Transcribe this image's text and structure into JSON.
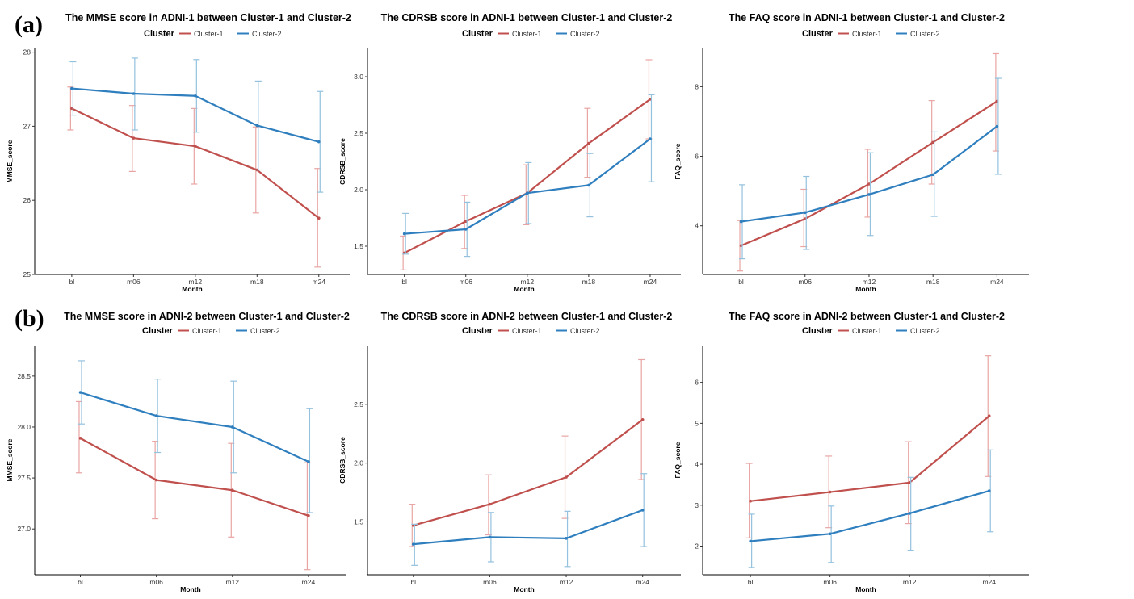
{
  "row_labels": [
    "(a)",
    "(b)"
  ],
  "colors": {
    "Cluster-1": "#c0504d",
    "Cluster-2": "#2f7fbf",
    "err_Cluster-1": "#e8a5a3",
    "err_Cluster-2": "#93c1de"
  },
  "chart_data": [
    {
      "type": "line",
      "title": "The MMSE score in ADNI-1 between Cluster-1 and Cluster-2",
      "legend_title": "Cluster",
      "legend": [
        "Cluster-1",
        "Cluster-2"
      ],
      "xlabel": "Month",
      "ylabel": "MMSE_score",
      "categories": [
        "bl",
        "m06",
        "m12",
        "m18",
        "m24"
      ],
      "yticks": [
        25,
        26,
        27,
        28
      ],
      "ylim": [
        25,
        28.05
      ],
      "series": [
        {
          "name": "Cluster-1",
          "values": [
            27.24,
            26.84,
            26.73,
            26.41,
            25.76
          ],
          "lower": [
            26.95,
            26.39,
            26.22,
            25.83,
            25.1
          ],
          "upper": [
            27.53,
            27.28,
            27.24,
            26.99,
            26.43
          ]
        },
        {
          "name": "Cluster-2",
          "values": [
            27.51,
            27.44,
            27.41,
            27.01,
            26.79
          ],
          "lower": [
            27.15,
            26.95,
            26.92,
            26.41,
            26.11
          ],
          "upper": [
            27.87,
            27.92,
            27.9,
            27.61,
            27.47
          ]
        }
      ]
    },
    {
      "type": "line",
      "title": "The CDRSB score in ADNI-1 between Cluster-1 and Cluster-2",
      "legend_title": "Cluster",
      "legend": [
        "Cluster-1",
        "Cluster-2"
      ],
      "xlabel": "Month",
      "ylabel": "CDRSB_score",
      "categories": [
        "bl",
        "m06",
        "m12",
        "m18",
        "m24"
      ],
      "yticks": [
        "1.5",
        "2.0",
        "2.5",
        "3.0"
      ],
      "ylim": [
        1.25,
        3.25
      ],
      "series": [
        {
          "name": "Cluster-1",
          "values": [
            1.44,
            1.72,
            1.97,
            2.41,
            2.8
          ],
          "lower": [
            1.29,
            1.48,
            1.69,
            2.11,
            2.45
          ],
          "upper": [
            1.59,
            1.95,
            2.22,
            2.72,
            3.15
          ]
        },
        {
          "name": "Cluster-2",
          "values": [
            1.61,
            1.65,
            1.97,
            2.04,
            2.45
          ],
          "lower": [
            1.43,
            1.41,
            1.7,
            1.76,
            2.07
          ],
          "upper": [
            1.79,
            1.89,
            2.24,
            2.32,
            2.84
          ]
        }
      ]
    },
    {
      "type": "line",
      "title": "The FAQ score in ADNI-1 between Cluster-1 and Cluster-2",
      "legend_title": "Cluster",
      "legend": [
        "Cluster-1",
        "Cluster-2"
      ],
      "xlabel": "Month",
      "ylabel": "FAQ_score",
      "categories": [
        "bl",
        "m06",
        "m12",
        "m18",
        "m24"
      ],
      "yticks": [
        4,
        6,
        8
      ],
      "ylim": [
        2.6,
        9.1
      ],
      "series": [
        {
          "name": "Cluster-1",
          "values": [
            3.43,
            4.2,
            5.2,
            6.4,
            7.58
          ],
          "lower": [
            2.7,
            3.4,
            4.25,
            5.2,
            6.15
          ],
          "upper": [
            4.15,
            5.05,
            6.2,
            7.6,
            8.95
          ]
        },
        {
          "name": "Cluster-2",
          "values": [
            4.12,
            4.38,
            4.9,
            5.47,
            6.86
          ],
          "lower": [
            3.05,
            3.32,
            3.72,
            4.27,
            5.48
          ],
          "upper": [
            5.18,
            5.42,
            6.1,
            6.7,
            8.24
          ]
        }
      ]
    },
    {
      "type": "line",
      "title": "The MMSE score in ADNI-2 between Cluster-1 and Cluster-2",
      "legend_title": "Cluster",
      "legend": [
        "Cluster-1",
        "Cluster-2"
      ],
      "xlabel": "Month",
      "ylabel": "MMSE_score",
      "categories": [
        "bl",
        "m06",
        "m12",
        "m24"
      ],
      "yticks": [
        "27.0",
        "27.5",
        "28.0",
        "28.5"
      ],
      "ylim": [
        26.55,
        28.8
      ],
      "series": [
        {
          "name": "Cluster-1",
          "values": [
            27.89,
            27.48,
            27.38,
            27.13
          ],
          "lower": [
            27.55,
            27.1,
            26.92,
            26.6
          ],
          "upper": [
            28.25,
            27.86,
            27.84,
            27.65
          ]
        },
        {
          "name": "Cluster-2",
          "values": [
            28.34,
            28.11,
            28.0,
            27.66
          ],
          "lower": [
            28.03,
            27.75,
            27.55,
            27.16
          ],
          "upper": [
            28.65,
            28.47,
            28.45,
            28.18
          ]
        }
      ]
    },
    {
      "type": "line",
      "title": "The CDRSB score in ADNI-2 between Cluster-1 and Cluster-2",
      "legend_title": "Cluster",
      "legend": [
        "Cluster-1",
        "Cluster-2"
      ],
      "xlabel": "Month",
      "ylabel": "CDRSB_score",
      "categories": [
        "bl",
        "m06",
        "m12",
        "m24"
      ],
      "yticks": [
        "1.5",
        "2.0",
        "2.5"
      ],
      "ylim": [
        1.05,
        3.0
      ],
      "series": [
        {
          "name": "Cluster-1",
          "values": [
            1.47,
            1.65,
            1.88,
            2.37
          ],
          "lower": [
            1.29,
            1.39,
            1.53,
            1.86
          ],
          "upper": [
            1.65,
            1.9,
            2.23,
            2.88
          ]
        },
        {
          "name": "Cluster-2",
          "values": [
            1.31,
            1.37,
            1.36,
            1.6
          ],
          "lower": [
            1.13,
            1.16,
            1.12,
            1.29
          ],
          "upper": [
            1.48,
            1.58,
            1.59,
            1.91
          ]
        }
      ]
    },
    {
      "type": "line",
      "title": "The FAQ score in ADNI-2 between Cluster-1 and Cluster-2",
      "legend_title": "Cluster",
      "legend": [
        "Cluster-1",
        "Cluster-2"
      ],
      "xlabel": "Month",
      "ylabel": "FAQ_score",
      "categories": [
        "bl",
        "m06",
        "m12",
        "m24"
      ],
      "yticks": [
        2,
        3,
        4,
        5,
        6
      ],
      "ylim": [
        1.3,
        6.9
      ],
      "series": [
        {
          "name": "Cluster-1",
          "values": [
            3.1,
            3.32,
            3.55,
            5.18
          ],
          "lower": [
            2.2,
            2.45,
            2.55,
            3.7
          ],
          "upper": [
            4.02,
            4.2,
            4.55,
            6.65
          ]
        },
        {
          "name": "Cluster-2",
          "values": [
            2.12,
            2.3,
            2.8,
            3.35
          ],
          "lower": [
            1.48,
            1.6,
            1.9,
            2.35
          ],
          "upper": [
            2.78,
            2.98,
            3.68,
            4.35
          ]
        }
      ]
    }
  ]
}
